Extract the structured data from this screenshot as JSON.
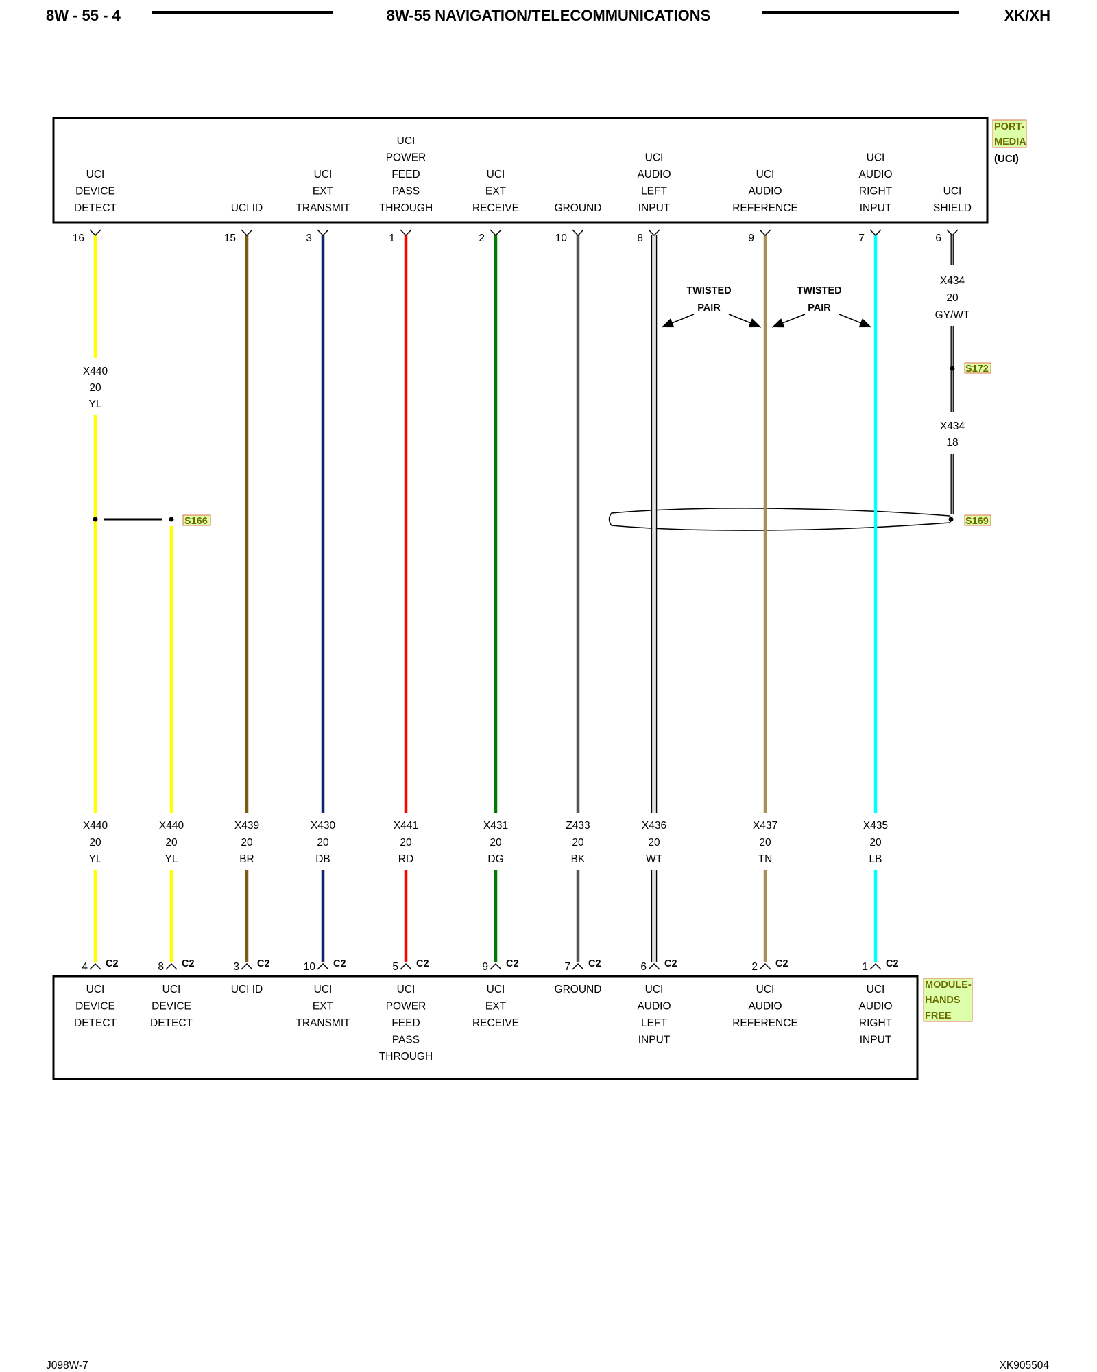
{
  "header": {
    "page_code": "8W - 55 - 4",
    "title": "8W-55 NAVIGATION/TELECOMMUNICATIONS",
    "model": "XK/XH"
  },
  "footer": {
    "left_code": "J098W-7",
    "right_code": "XK905504"
  },
  "components": {
    "top": {
      "name_lines": [
        "PORT-",
        "MEDIA"
      ],
      "abbr": "(UCI)"
    },
    "bottom": {
      "name_lines": [
        "MODULE-",
        "HANDS",
        "FREE"
      ],
      "connector": "C2"
    }
  },
  "top_pins": [
    {
      "pin": "16",
      "label": [
        "UCI",
        "DEVICE",
        "DETECT"
      ]
    },
    {
      "pin": "15",
      "label": [
        "UCI ID"
      ]
    },
    {
      "pin": "3",
      "label": [
        "UCI",
        "EXT",
        "TRANSMIT"
      ]
    },
    {
      "pin": "1",
      "label": [
        "UCI",
        "POWER",
        "FEED",
        "PASS",
        "THROUGH"
      ]
    },
    {
      "pin": "2",
      "label": [
        "UCI",
        "EXT",
        "RECEIVE"
      ]
    },
    {
      "pin": "10",
      "label": [
        "GROUND"
      ]
    },
    {
      "pin": "8",
      "label": [
        "UCI",
        "AUDIO",
        "LEFT",
        "INPUT"
      ]
    },
    {
      "pin": "9",
      "label": [
        "UCI",
        "AUDIO",
        "REFERENCE"
      ]
    },
    {
      "pin": "7",
      "label": [
        "UCI",
        "AUDIO",
        "RIGHT",
        "INPUT"
      ]
    },
    {
      "pin": "6",
      "label": [
        "UCI",
        "SHIELD"
      ]
    }
  ],
  "bottom_pins": [
    {
      "pin": "4",
      "label": [
        "UCI",
        "DEVICE",
        "DETECT"
      ]
    },
    {
      "pin": "8",
      "label": [
        "UCI",
        "DEVICE",
        "DETECT"
      ]
    },
    {
      "pin": "3",
      "label": [
        "UCI ID"
      ]
    },
    {
      "pin": "10",
      "label": [
        "UCI",
        "EXT",
        "TRANSMIT"
      ]
    },
    {
      "pin": "5",
      "label": [
        "UCI",
        "POWER",
        "FEED",
        "PASS",
        "THROUGH"
      ]
    },
    {
      "pin": "9",
      "label": [
        "UCI",
        "EXT",
        "RECEIVE"
      ]
    },
    {
      "pin": "7",
      "label": [
        "GROUND"
      ]
    },
    {
      "pin": "6",
      "label": [
        "UCI",
        "AUDIO",
        "LEFT",
        "INPUT"
      ]
    },
    {
      "pin": "2",
      "label": [
        "UCI",
        "AUDIO",
        "REFERENCE"
      ]
    },
    {
      "pin": "1",
      "label": [
        "UCI",
        "AUDIO",
        "RIGHT",
        "INPUT"
      ]
    }
  ],
  "wires": [
    {
      "circuit": "X440",
      "gauge": "20",
      "color_code": "YL",
      "color": "#ffff00"
    },
    {
      "circuit": "X440",
      "gauge": "20",
      "color_code": "YL",
      "color": "#ffff00"
    },
    {
      "circuit": "X439",
      "gauge": "20",
      "color_code": "BR",
      "color": "#7a5c12"
    },
    {
      "circuit": "X430",
      "gauge": "20",
      "color_code": "DB",
      "color": "#10206b"
    },
    {
      "circuit": "X441",
      "gauge": "20",
      "color_code": "RD",
      "color": "#ff0000"
    },
    {
      "circuit": "X431",
      "gauge": "20",
      "color_code": "DG",
      "color": "#007a00"
    },
    {
      "circuit": "Z433",
      "gauge": "20",
      "color_code": "BK",
      "color": "#555555"
    },
    {
      "circuit": "X436",
      "gauge": "20",
      "color_code": "WT",
      "color": "#e0e0e0"
    },
    {
      "circuit": "X437",
      "gauge": "20",
      "color_code": "TN",
      "color": "#a88f58"
    },
    {
      "circuit": "X435",
      "gauge": "20",
      "color_code": "LB",
      "color": "#00ffff"
    }
  ],
  "upper_wire_label": {
    "circuit": "X440",
    "gauge": "20",
    "color_code": "YL"
  },
  "shield_wire": {
    "upper": {
      "circuit": "X434",
      "gauge": "20",
      "color_code": "GY/WT"
    },
    "lower": {
      "circuit": "X434",
      "gauge": "18"
    }
  },
  "splices": {
    "device_detect": "S166",
    "shield_upper": "S172",
    "shield_lower": "S169"
  },
  "twisted_pair_labels": [
    [
      "TWISTED",
      "PAIR"
    ],
    [
      "TWISTED",
      "PAIR"
    ]
  ]
}
